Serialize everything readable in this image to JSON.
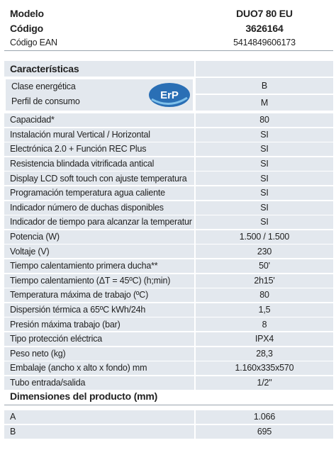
{
  "header": {
    "rows": [
      [
        "Modelo",
        "DUO7 80 EU"
      ],
      [
        "Código",
        "3626164"
      ],
      [
        "Código EAN",
        "5414849606173"
      ]
    ]
  },
  "characteristics": {
    "title": "Características",
    "logo": "ErP",
    "energy": [
      [
        "Clase energética",
        "B"
      ],
      [
        "Perfil de consumo",
        "M"
      ]
    ],
    "rows": [
      [
        "Capacidad*",
        "80"
      ],
      [
        "Instalación mural Vertical / Horizontal",
        "SI"
      ],
      [
        "Electrónica 2.0 + Función REC Plus",
        "SI"
      ],
      [
        "Resistencia blindada vitrificada antical",
        "SI"
      ],
      [
        "Display LCD soft touch con ajuste temperatura",
        "SI"
      ],
      [
        "Programación temperatura agua caliente",
        "SI"
      ],
      [
        "Indicador número de duchas disponibles",
        "SI"
      ],
      [
        "Indicador de tiempo para alcanzar la temperatur",
        "SI"
      ],
      [
        "Potencia (W)",
        "1.500 / 1.500"
      ],
      [
        "Voltaje (V)",
        "230"
      ],
      [
        "Tiempo calentamiento primera ducha**",
        "50'"
      ],
      [
        "Tiempo calentamiento (ΔT = 45ºC) (h;min)",
        "2h15'"
      ],
      [
        "Temperatura máxima de trabajo (ºC)",
        "80"
      ],
      [
        "Dispersión térmica a 65ºC kWh/24h",
        "1,5"
      ],
      [
        "Presión máxima trabajo (bar)",
        "8"
      ],
      [
        "Tipo protección eléctrica",
        "IPX4"
      ],
      [
        "Peso neto (kg)",
        "28,3"
      ],
      [
        "Embalaje (ancho x alto x fondo) mm",
        "1.160x335x570"
      ],
      [
        "Tubo entrada/salida",
        "1/2\""
      ]
    ]
  },
  "dimensions": {
    "title": "Dimensiones del producto (mm)",
    "rows": [
      [
        "A",
        "1.066"
      ],
      [
        "B",
        "695"
      ]
    ]
  }
}
